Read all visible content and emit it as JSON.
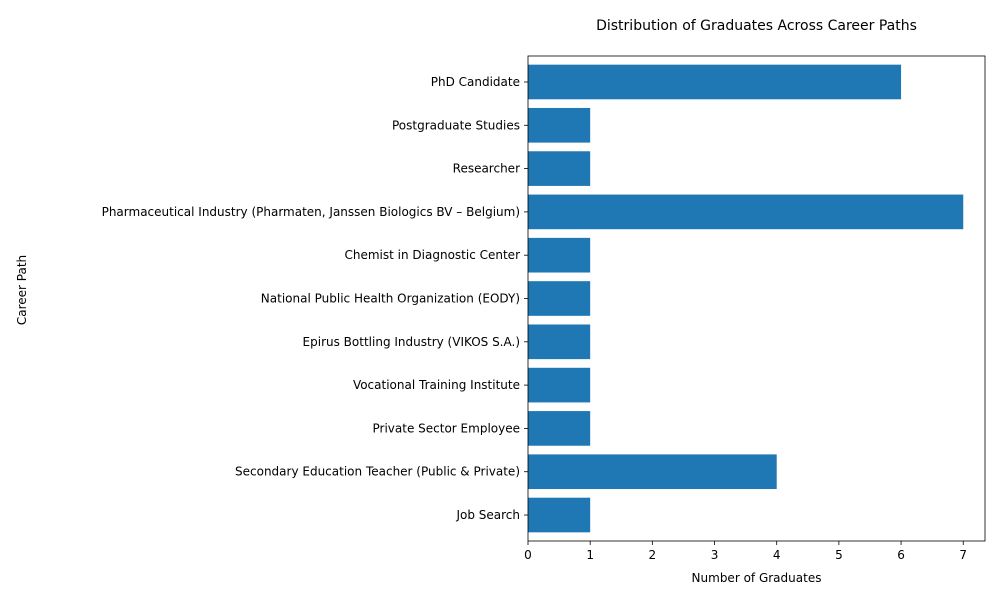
{
  "chart_data": {
    "type": "bar",
    "orientation": "horizontal",
    "title": "Distribution of Graduates Across Career Paths",
    "xlabel": "Number of Graduates",
    "ylabel": "Career Path",
    "categories": [
      "Job Search",
      "Secondary Education Teacher (Public & Private)",
      "Private Sector Employee",
      "Vocational Training Institute",
      "Epirus Bottling Industry (VIKOS S.A.)",
      "National Public Health Organization (EODY)",
      "Chemist in Diagnostic Center",
      "Pharmaceutical Industry (Pharmaten, Janssen Biologics BV – Belgium)",
      "Researcher",
      "Postgraduate Studies",
      "PhD Candidate"
    ],
    "values": [
      1,
      4,
      1,
      1,
      1,
      1,
      1,
      7,
      1,
      1,
      6
    ],
    "xlim": [
      0,
      7.35
    ],
    "xticks": [
      "0",
      "1",
      "2",
      "3",
      "4",
      "5",
      "6",
      "7"
    ],
    "bar_color": "#1f77b4",
    "grid": false,
    "legend": "none"
  }
}
